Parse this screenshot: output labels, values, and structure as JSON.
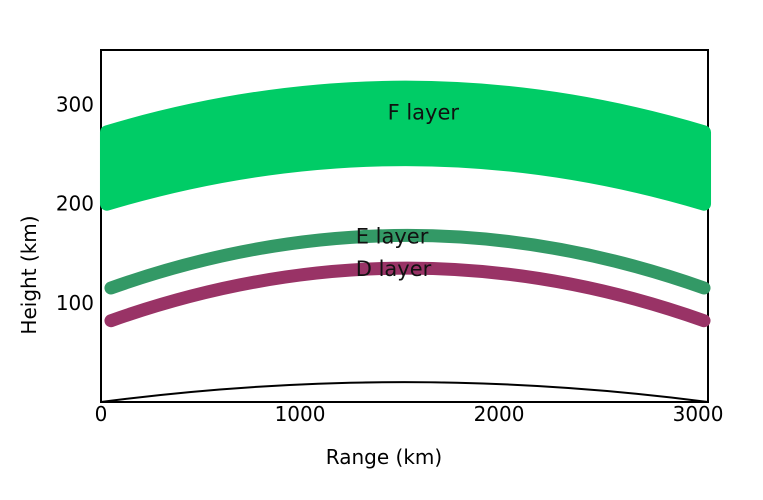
{
  "chart_data": {
    "type": "area",
    "title": "",
    "xlabel": "Range (km)",
    "ylabel": "Height (km)",
    "xlim": [
      0,
      3050
    ],
    "ylim": [
      0,
      355
    ],
    "xticks": [
      "0",
      "1000",
      "2000",
      "3000"
    ],
    "xtick_values": [
      0,
      1000,
      2000,
      3000
    ],
    "yticks": [
      "100",
      "200",
      "300"
    ],
    "ytick_values": [
      100,
      200,
      300
    ],
    "grid": false,
    "legend": "none",
    "ground_curve": {
      "x_end": 3050,
      "edge_height": 0,
      "peak_height": 20
    },
    "series": [
      {
        "name": "F layer",
        "kind": "band",
        "color": "#00cc66",
        "x_start": 30,
        "x_end": 3030,
        "edge_low": 200,
        "edge_high": 272,
        "peak_low": 245,
        "peak_high": 317
      },
      {
        "name": "E layer",
        "kind": "line",
        "color": "#339966",
        "x_start": 50,
        "x_end": 3030,
        "edge": 115,
        "peak": 168
      },
      {
        "name": "D layer",
        "kind": "line",
        "color": "#993366",
        "x_start": 50,
        "x_end": 3030,
        "edge": 82,
        "peak": 135
      }
    ],
    "annotations": [
      {
        "text": "F layer",
        "x": 1440,
        "y": 285
      },
      {
        "text": "E layer",
        "x": 1280,
        "y": 160
      },
      {
        "text": "D layer",
        "x": 1280,
        "y": 127
      }
    ]
  }
}
